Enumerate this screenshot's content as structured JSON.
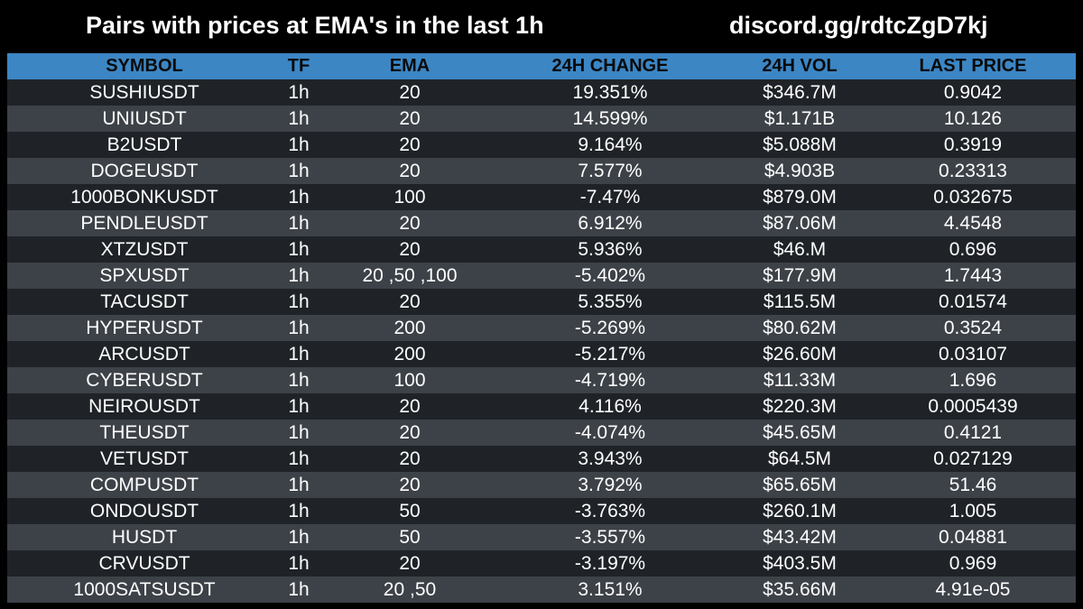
{
  "header": {
    "title": "Pairs with prices at EMA's in the last 1h",
    "link": "discord.gg/rdtcZgD7kj"
  },
  "table": {
    "columns": [
      "SYMBOL",
      "TF",
      "EMA",
      "24H CHANGE",
      "24H VOL",
      "LAST PRICE"
    ],
    "rows": [
      [
        "SUSHIUSDT",
        "1h",
        "20",
        "19.351%",
        "$346.7M",
        "0.9042"
      ],
      [
        "UNIUSDT",
        "1h",
        "20",
        "14.599%",
        "$1.171B",
        "10.126"
      ],
      [
        "B2USDT",
        "1h",
        "20",
        "9.164%",
        "$5.088M",
        "0.3919"
      ],
      [
        "DOGEUSDT",
        "1h",
        "20",
        "7.577%",
        "$4.903B",
        "0.23313"
      ],
      [
        "1000BONKUSDT",
        "1h",
        "100",
        "-7.47%",
        "$879.0M",
        "0.032675"
      ],
      [
        "PENDLEUSDT",
        "1h",
        "20",
        "6.912%",
        "$87.06M",
        "4.4548"
      ],
      [
        "XTZUSDT",
        "1h",
        "20",
        "5.936%",
        "$46.M",
        "0.696"
      ],
      [
        "SPXUSDT",
        "1h",
        "20 ,50 ,100",
        "-5.402%",
        "$177.9M",
        "1.7443"
      ],
      [
        "TACUSDT",
        "1h",
        "20",
        "5.355%",
        "$115.5M",
        "0.01574"
      ],
      [
        "HYPERUSDT",
        "1h",
        "200",
        "-5.269%",
        "$80.62M",
        "0.3524"
      ],
      [
        "ARCUSDT",
        "1h",
        "200",
        "-5.217%",
        "$26.60M",
        "0.03107"
      ],
      [
        "CYBERUSDT",
        "1h",
        "100",
        "-4.719%",
        "$11.33M",
        "1.696"
      ],
      [
        "NEIROUSDT",
        "1h",
        "20",
        "4.116%",
        "$220.3M",
        "0.0005439"
      ],
      [
        "THEUSDT",
        "1h",
        "20",
        "-4.074%",
        "$45.65M",
        "0.4121"
      ],
      [
        "VETUSDT",
        "1h",
        "20",
        "3.943%",
        "$64.5M",
        "0.027129"
      ],
      [
        "COMPUSDT",
        "1h",
        "20",
        "3.792%",
        "$65.65M",
        "51.46"
      ],
      [
        "ONDOUSDT",
        "1h",
        "50",
        "-3.763%",
        "$260.1M",
        "1.005"
      ],
      [
        "HUSDT",
        "1h",
        "50",
        "-3.557%",
        "$43.42M",
        "0.04881"
      ],
      [
        "CRVUSDT",
        "1h",
        "20",
        "-3.197%",
        "$403.5M",
        "0.969"
      ],
      [
        "1000SATSUSDT",
        "1h",
        "20 ,50",
        "3.151%",
        "$35.66M",
        "4.91e-05"
      ]
    ]
  },
  "colors": {
    "background": "#000000",
    "header_row": "#3c86c4",
    "row_dark": "#1f2328",
    "row_light": "#3d4248",
    "text": "#ffffff"
  }
}
